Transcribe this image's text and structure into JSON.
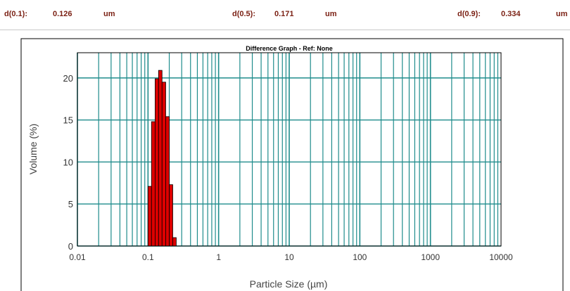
{
  "stats": {
    "d10_label": "d(0.1):",
    "d10_value": "0.126",
    "d10_unit": "um",
    "d50_label": "d(0.5):",
    "d50_value": "0.171",
    "d50_unit": "um",
    "d90_label": "d(0.9):",
    "d90_value": "0.334",
    "d90_unit": "um"
  },
  "chart_data": {
    "type": "bar",
    "title": "Difference Graph - Ref: None",
    "xlabel": "Particle Size (µm)",
    "ylabel": "Volume (%)",
    "x_scale": "log",
    "xlim": [
      0.01,
      10000
    ],
    "ylim": [
      0,
      23
    ],
    "x_ticks": [
      {
        "value": 0.01,
        "label": "0.01"
      },
      {
        "value": 0.1,
        "label": "0.1"
      },
      {
        "value": 1,
        "label": "1"
      },
      {
        "value": 10,
        "label": "10"
      },
      {
        "value": 100,
        "label": "100"
      },
      {
        "value": 1000,
        "label": "1000"
      },
      {
        "value": 10000,
        "label": "10000"
      }
    ],
    "y_ticks": [
      {
        "value": 0,
        "label": "0"
      },
      {
        "value": 5,
        "label": "5"
      },
      {
        "value": 10,
        "label": "10"
      },
      {
        "value": 15,
        "label": "15"
      },
      {
        "value": 20,
        "label": "20"
      }
    ],
    "grid": true,
    "legend": "none",
    "bar_color": "#dd0000",
    "grid_color": "#1f8c8c",
    "bins": [
      {
        "x0": 0.1,
        "x1": 0.112,
        "value": 7.1
      },
      {
        "x0": 0.112,
        "x1": 0.126,
        "value": 14.8
      },
      {
        "x0": 0.126,
        "x1": 0.141,
        "value": 19.9
      },
      {
        "x0": 0.141,
        "x1": 0.158,
        "value": 20.9
      },
      {
        "x0": 0.158,
        "x1": 0.178,
        "value": 19.5
      },
      {
        "x0": 0.178,
        "x1": 0.2,
        "value": 15.4
      },
      {
        "x0": 0.2,
        "x1": 0.224,
        "value": 7.3
      },
      {
        "x0": 0.224,
        "x1": 0.251,
        "value": 1.0
      }
    ]
  }
}
